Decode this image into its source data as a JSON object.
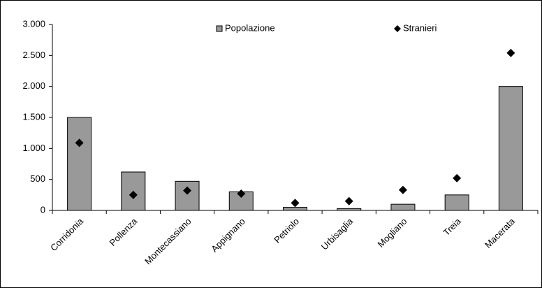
{
  "chart_data": {
    "type": "bar",
    "categories": [
      "Corridonia",
      "Pollenza",
      "Montecassiano",
      "Appignano",
      "Petriolo",
      "Urbisaglia",
      "Mogliano",
      "Treia",
      "Macerata"
    ],
    "series": [
      {
        "name": "Popolazione",
        "color": "#999999",
        "marker": "bar",
        "values": [
          1500,
          620,
          470,
          300,
          50,
          30,
          100,
          250,
          2000
        ]
      },
      {
        "name": "Stranieri",
        "color": "#000000",
        "marker": "diamond",
        "values": [
          1090,
          250,
          320,
          270,
          120,
          150,
          330,
          520,
          2540
        ]
      }
    ],
    "ylim": [
      0,
      3000
    ],
    "yticks": [
      0,
      500,
      {
        "value": 1000,
        "label": "1.000"
      },
      {
        "value": 1500,
        "label": "1.500"
      },
      {
        "value": 2000,
        "label": "2.000"
      },
      {
        "value": 2500,
        "label": "2.500"
      },
      {
        "value": 3000,
        "label": "3.000"
      }
    ],
    "grid": false,
    "legend": "top"
  }
}
